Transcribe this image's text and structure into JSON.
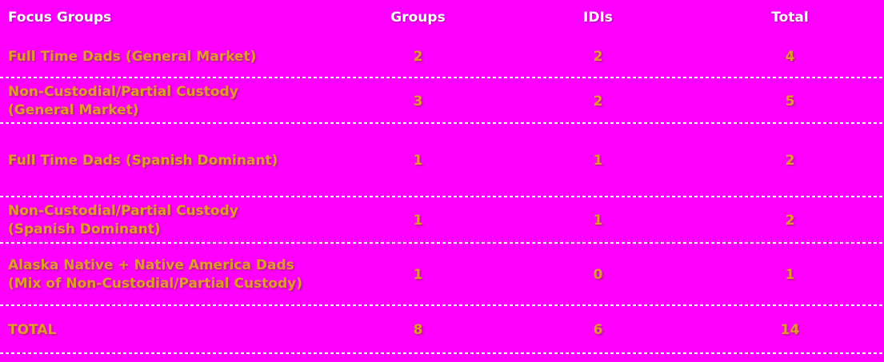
{
  "table": {
    "headers": {
      "focus_groups": "Focus Groups",
      "groups": "Groups",
      "idis": "IDIs",
      "total": "Total"
    },
    "rows": [
      {
        "label": "Full Time Dads (General Market)",
        "groups": "2",
        "idis": "2",
        "total": "4"
      },
      {
        "label": "Non-Custodial/Partial Custody (General Market)",
        "groups": "3",
        "idis": "2",
        "total": "5"
      },
      {
        "label": "Full Time Dads (Spanish Dominant)",
        "groups": "1",
        "idis": "1",
        "total": "2"
      },
      {
        "label": "Non-Custodial/Partial Custody (Spanish Dominant)",
        "groups": "1",
        "idis": "1",
        "total": "2"
      },
      {
        "label": "Alaska Native + Native America Dads (Mix of Non-Custodial/Partial Custody)",
        "groups": "1",
        "idis": "0",
        "total": "1"
      },
      {
        "label": "TOTAL",
        "groups": "8",
        "idis": "6",
        "total": "14"
      }
    ],
    "colors": {
      "background": "#FF00FF",
      "header_text": "#FFFFFF",
      "body_text": "#E09A30",
      "divider": "#FFFFFF"
    }
  }
}
